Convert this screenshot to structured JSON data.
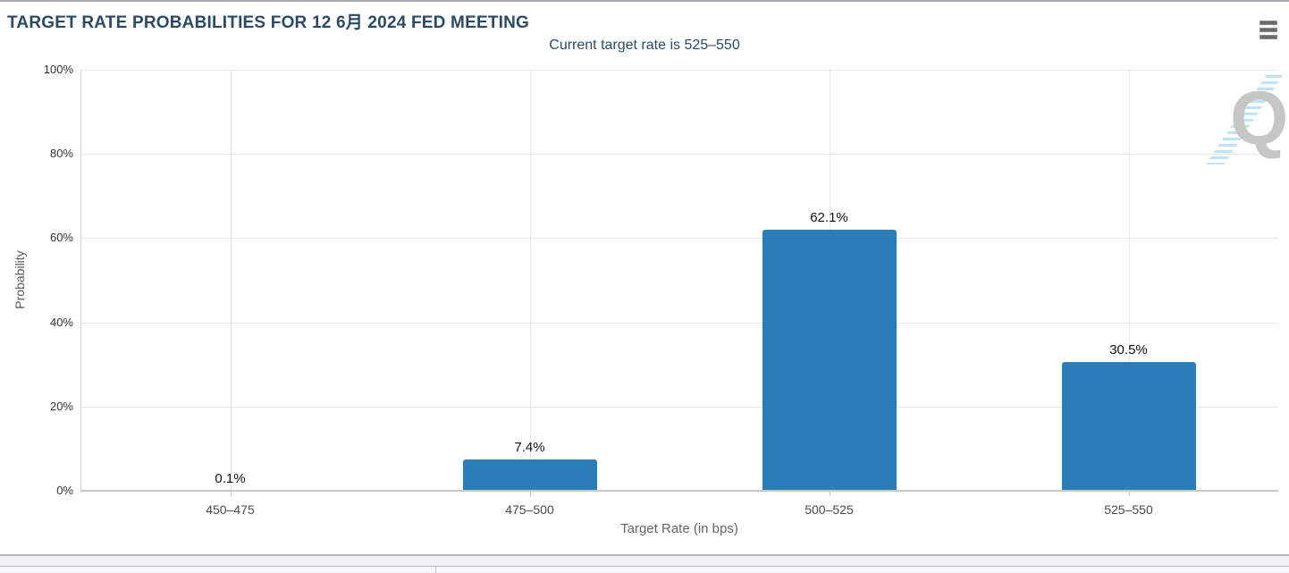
{
  "header": {
    "title": "TARGET RATE PROBABILITIES FOR 12 6月 2024 FED MEETING",
    "subtitle": "Current target rate is 525–550"
  },
  "watermark": {
    "letter": "Q"
  },
  "chart_data": {
    "type": "bar",
    "title": "TARGET RATE PROBABILITIES FOR 12 6月 2024 FED MEETING",
    "subtitle": "Current target rate is 525–550",
    "categories": [
      "450–475",
      "475–500",
      "500–525",
      "525–550"
    ],
    "values": [
      0.1,
      7.4,
      62.1,
      30.5
    ],
    "data_labels": [
      "0.1%",
      "7.4%",
      "62.1%",
      "30.5%"
    ],
    "xlabel": "Target Rate (in bps)",
    "ylabel": "Probability",
    "ylim": [
      0,
      100
    ],
    "yticks": [
      {
        "value": 0,
        "label": "0%"
      },
      {
        "value": 20,
        "label": "20%"
      },
      {
        "value": 40,
        "label": "40%"
      },
      {
        "value": 60,
        "label": "60%"
      },
      {
        "value": 80,
        "label": "80%"
      },
      {
        "value": 100,
        "label": "100%"
      }
    ],
    "grid": true,
    "legend": "none",
    "colors": {
      "bar": "#2a7eb8",
      "title": "#2c4a66",
      "gridline": "#e6e6e6",
      "axis_line": "#c8c8c8",
      "tick_label": "#333333",
      "axis_title": "#5a5a5a",
      "data_label": "#111111",
      "watermark_dash": "#bfe5f4",
      "watermark_letter": "#c6c6c6"
    }
  }
}
